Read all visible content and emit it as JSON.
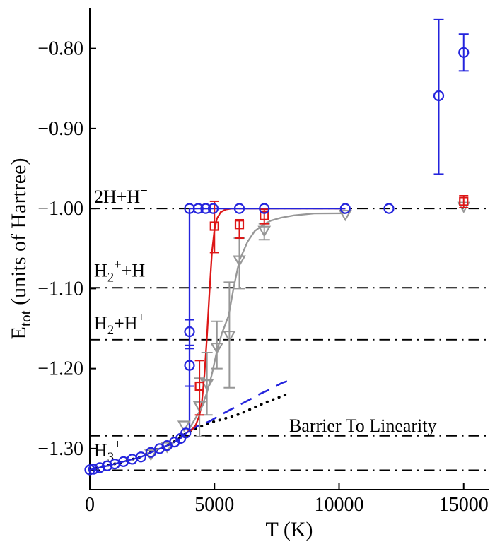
{
  "chart_data": {
    "type": "scatter",
    "title": "",
    "xlabel": "T (K)",
    "ylabel_segments": [
      {
        "t": "E"
      },
      {
        "t": "tot",
        "style": "sub"
      },
      {
        "t": " (units of Hartree)"
      }
    ],
    "xlim": [
      0,
      16000
    ],
    "ylim": [
      -1.35,
      -0.75
    ],
    "grid": false,
    "legend": "none",
    "colors": {
      "blue": "#2424dd",
      "red": "#dd1616",
      "gray": "#979797",
      "black": "#000000"
    },
    "x_ticks": [
      {
        "v": 0,
        "label": "0"
      },
      {
        "v": 5000,
        "label": "5000"
      },
      {
        "v": 10000,
        "label": "10000"
      },
      {
        "v": 15000,
        "label": "15000"
      }
    ],
    "y_ticks": [
      {
        "v": -0.8,
        "label": "−0.80"
      },
      {
        "v": -0.9,
        "label": "−0.90"
      },
      {
        "v": -1.0,
        "label": "−1.00"
      },
      {
        "v": -1.1,
        "label": "−1.10"
      },
      {
        "v": -1.2,
        "label": "−1.20"
      },
      {
        "v": -1.3,
        "label": "−1.30"
      }
    ],
    "reference_lines": [
      {
        "name": "2h-plus-hplus",
        "e": -1.0,
        "label_t": 170,
        "label_e": -0.993,
        "label_segments": [
          {
            "t": "2H+H"
          },
          {
            "t": "+",
            "style": "sup"
          }
        ]
      },
      {
        "name": "h2plus-plus-h",
        "e": -1.099,
        "label_t": 170,
        "label_e": -1.085,
        "label_segments": [
          {
            "t": "H"
          },
          {
            "t": "2",
            "style": "sub"
          },
          {
            "t": "+",
            "style": "sup"
          },
          {
            "t": "+H"
          }
        ]
      },
      {
        "name": "h2-plus-hplus",
        "e": -1.164,
        "label_t": 170,
        "label_e": -1.151,
        "label_segments": [
          {
            "t": "H"
          },
          {
            "t": "2",
            "style": "sub"
          },
          {
            "t": "+H"
          },
          {
            "t": "+",
            "style": "sup"
          }
        ]
      },
      {
        "name": "barrier-to-linearity",
        "e": -1.284,
        "label_t": 8000,
        "label_e": -1.279,
        "label_segments": [
          {
            "t": "Barrier To Linearity"
          }
        ]
      },
      {
        "name": "h3plus",
        "e": -1.327,
        "label_t": 170,
        "label_e": -1.31,
        "label_segments": [
          {
            "t": "H"
          },
          {
            "t": "3",
            "style": "sub"
          },
          {
            "t": "+",
            "style": "sup"
          }
        ]
      }
    ],
    "curves": [
      {
        "name": "dotted-classical-baseline",
        "color_key": "black",
        "style": "dotted",
        "points": [
          [
            0,
            -1.3265
          ],
          [
            500,
            -1.3225
          ],
          [
            1000,
            -1.319
          ],
          [
            1500,
            -1.315
          ],
          [
            2000,
            -1.3108
          ],
          [
            2500,
            -1.3035
          ],
          [
            3000,
            -1.2975
          ],
          [
            3500,
            -1.2895
          ],
          [
            3900,
            -1.28
          ],
          [
            4400,
            -1.273
          ],
          [
            4900,
            -1.267
          ],
          [
            5400,
            -1.2625
          ],
          [
            6000,
            -1.257
          ],
          [
            6500,
            -1.25
          ],
          [
            7000,
            -1.243
          ],
          [
            7500,
            -1.237
          ],
          [
            8000,
            -1.231
          ]
        ]
      },
      {
        "name": "dashed-bound-extrapolation",
        "color_key": "blue",
        "style": "dashed",
        "points": [
          [
            3950,
            -1.2785
          ],
          [
            4300,
            -1.272
          ],
          [
            4800,
            -1.266
          ],
          [
            5300,
            -1.257
          ],
          [
            5900,
            -1.247
          ],
          [
            6400,
            -1.239
          ],
          [
            6800,
            -1.232
          ],
          [
            7300,
            -1.225
          ],
          [
            7700,
            -1.218
          ],
          [
            8200,
            -1.213
          ]
        ]
      },
      {
        "name": "gray-sigmoid",
        "color_key": "gray",
        "style": "solid",
        "points": [
          [
            3920,
            -1.279
          ],
          [
            4200,
            -1.264
          ],
          [
            4450,
            -1.251
          ],
          [
            4700,
            -1.23
          ],
          [
            4900,
            -1.207
          ],
          [
            5100,
            -1.178
          ],
          [
            5300,
            -1.156
          ],
          [
            5570,
            -1.134
          ],
          [
            5770,
            -1.099
          ],
          [
            6000,
            -1.065
          ],
          [
            6330,
            -1.0415
          ],
          [
            6620,
            -1.028
          ],
          [
            7000,
            -1.0195
          ],
          [
            7270,
            -1.015
          ],
          [
            7670,
            -1.0115
          ],
          [
            8200,
            -1.0085
          ],
          [
            9000,
            -1.0062
          ],
          [
            10250,
            -1.006
          ]
        ]
      },
      {
        "name": "red-sigmoid",
        "color_key": "red",
        "style": "solid",
        "points": [
          [
            3920,
            -1.279
          ],
          [
            4100,
            -1.2765
          ],
          [
            4250,
            -1.2705
          ],
          [
            4400,
            -1.2585
          ],
          [
            4500,
            -1.2405
          ],
          [
            4600,
            -1.208
          ],
          [
            4700,
            -1.16
          ],
          [
            4800,
            -1.105
          ],
          [
            4900,
            -1.055
          ],
          [
            5000,
            -1.0265
          ],
          [
            5100,
            -1.0125
          ],
          [
            5250,
            -1.0045
          ],
          [
            5450,
            -1.0012
          ],
          [
            5700,
            -1.0
          ],
          [
            10250,
            -1.0
          ]
        ]
      },
      {
        "name": "blue-step",
        "color_key": "blue",
        "style": "solid",
        "points": [
          [
            0,
            -1.3265
          ],
          [
            700,
            -1.3215
          ],
          [
            1350,
            -1.3163
          ],
          [
            2050,
            -1.3105
          ],
          [
            2450,
            -1.3048
          ],
          [
            2800,
            -1.3
          ],
          [
            3200,
            -1.2948
          ],
          [
            3600,
            -1.2883
          ],
          [
            3900,
            -1.2798
          ],
          [
            4000,
            -1.2785
          ],
          [
            4000,
            -1.0
          ],
          [
            10250,
            -1.0
          ]
        ]
      }
    ],
    "series": [
      {
        "name": "gray-triangles",
        "marker": "triangle-down",
        "color_key": "gray",
        "cap": 8,
        "points": [
          [
            2450,
            -1.3065
          ],
          [
            3100,
            -1.297
          ],
          [
            3780,
            -1.2705
          ],
          [
            4400,
            -1.246,
            -1.285,
            -1.212
          ],
          [
            4700,
            -1.219,
            -1.258,
            -1.18
          ],
          [
            5100,
            -1.173,
            -1.2,
            -1.141
          ],
          [
            5600,
            -1.158,
            -1.224,
            -1.092
          ],
          [
            6000,
            -1.064,
            -1.1,
            -1.037
          ],
          [
            7000,
            -1.027,
            -1.039,
            -1.019
          ],
          [
            10250,
            -1.007
          ],
          [
            15000,
            -0.997
          ]
        ]
      },
      {
        "name": "red-squares",
        "marker": "square",
        "color_key": "red",
        "cap": 6.5,
        "points": [
          [
            4400,
            -1.222,
            -1.258,
            -1.19
          ],
          [
            5000,
            -1.022,
            -1.055,
            -0.991
          ],
          [
            6000,
            -1.02,
            -1.037,
            -1.014
          ],
          [
            7000,
            -1.009,
            -1.019,
            -1.001
          ],
          [
            15000,
            -0.991,
            -0.999,
            -0.984
          ]
        ]
      },
      {
        "name": "blue-circles",
        "marker": "circle",
        "color_key": "blue",
        "cap": 7,
        "points": [
          [
            0,
            -1.3265
          ],
          [
            150,
            -1.3258
          ],
          [
            400,
            -1.3238
          ],
          [
            700,
            -1.3215
          ],
          [
            1000,
            -1.3192
          ],
          [
            1350,
            -1.3163
          ],
          [
            1700,
            -1.3133
          ],
          [
            2050,
            -1.3105
          ],
          [
            2450,
            -1.3048
          ],
          [
            2800,
            -1.3
          ],
          [
            3100,
            -1.2962
          ],
          [
            3400,
            -1.2918
          ],
          [
            3650,
            -1.2872
          ],
          [
            3850,
            -1.2806
          ],
          [
            4000,
            -1.196,
            -1.222,
            -1.175
          ],
          [
            4000,
            -1.154,
            -1.171,
            -1.139
          ],
          [
            4000,
            -1.0
          ],
          [
            4350,
            -1.0
          ],
          [
            4650,
            -1.0
          ],
          [
            4950,
            -1.0
          ],
          [
            6000,
            -1.0
          ],
          [
            7000,
            -1.0
          ],
          [
            10250,
            -1.0
          ],
          [
            12000,
            -1.0
          ],
          [
            14000,
            -0.859,
            -0.957,
            -0.764
          ],
          [
            15000,
            -0.805,
            -0.828,
            -0.782
          ]
        ]
      }
    ]
  }
}
